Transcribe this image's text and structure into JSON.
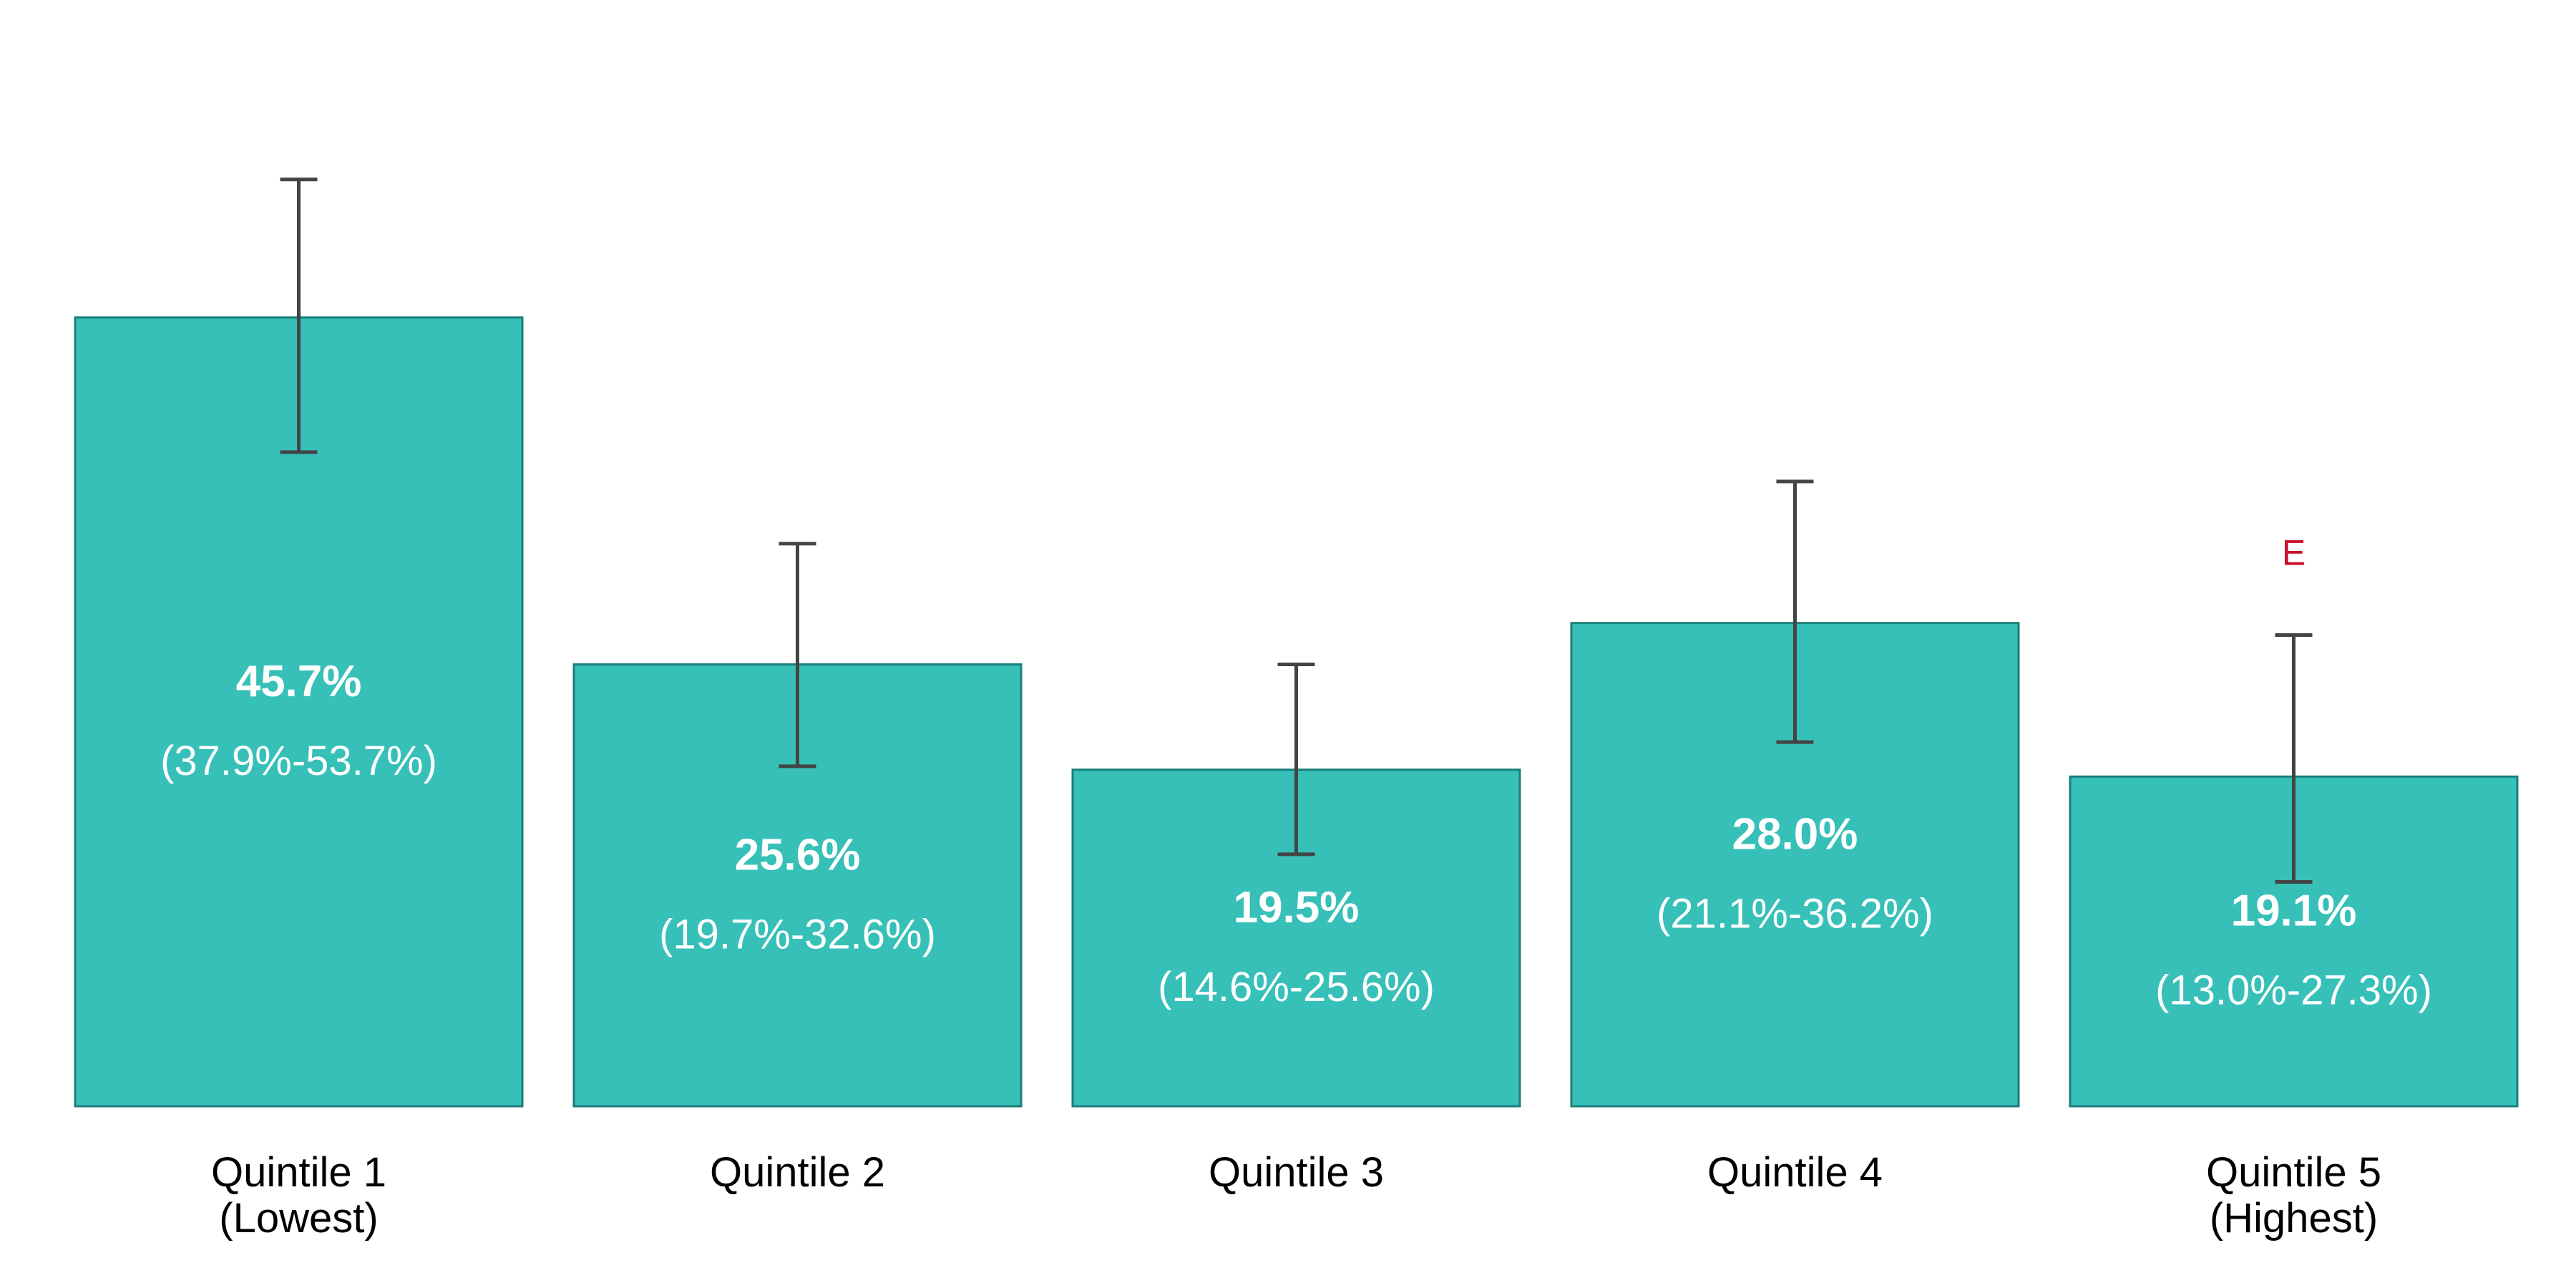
{
  "chart_data": {
    "type": "bar",
    "title": "",
    "xlabel": "",
    "ylabel": "",
    "ylim": [
      0,
      60
    ],
    "grid": false,
    "legend": "none",
    "bar_color": "#36c0b8",
    "bar_edge_color": "#1a7f7a",
    "error_bar_color": "#444444",
    "flag_color": "#c8102e",
    "categories": [
      {
        "line1": "Quintile 1",
        "line2": "(Lowest)"
      },
      {
        "line1": "Quintile 2",
        "line2": ""
      },
      {
        "line1": "Quintile 3",
        "line2": ""
      },
      {
        "line1": "Quintile 4",
        "line2": ""
      },
      {
        "line1": "Quintile 5",
        "line2": " (Highest)"
      }
    ],
    "values": [
      45.7,
      25.6,
      19.5,
      28.0,
      19.1
    ],
    "ci_lower": [
      37.9,
      19.7,
      14.6,
      21.1,
      13.0
    ],
    "ci_upper": [
      53.7,
      32.6,
      25.6,
      36.2,
      27.3
    ],
    "value_labels": [
      "45.7%",
      "25.6%",
      "19.5%",
      "28.0%",
      "19.1%"
    ],
    "ci_labels": [
      "(37.9%-53.7%)",
      "(19.7%-32.6%)",
      "(14.6%-25.6%)",
      "(21.1%-36.2%)",
      "(13.0%-27.3%)"
    ],
    "flags": [
      "",
      "",
      "",
      "",
      "E"
    ]
  }
}
